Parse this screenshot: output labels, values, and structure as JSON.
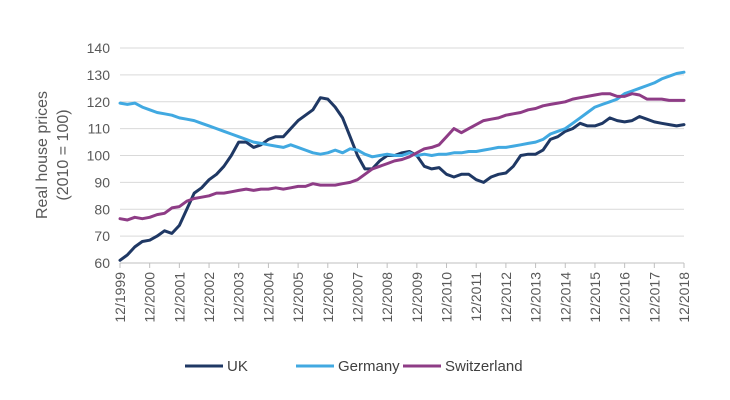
{
  "chart_data": {
    "type": "line",
    "title": "",
    "xlabel": "",
    "ylabel_lines": [
      "Real house prices",
      "(2010 = 100)"
    ],
    "ylim": [
      60,
      140
    ],
    "yticks": [
      60,
      70,
      80,
      90,
      100,
      110,
      120,
      130,
      140
    ],
    "x_start": 1999.92,
    "x_end": 2018.92,
    "x_tick_labels": [
      "12/1999",
      "12/2000",
      "12/2001",
      "12/2002",
      "12/2003",
      "12/2004",
      "12/2005",
      "12/2006",
      "12/2007",
      "12/2008",
      "12/2009",
      "12/2010",
      "12/2011",
      "12/2012",
      "12/2013",
      "12/2014",
      "12/2015",
      "12/2016",
      "12/2017",
      "12/2018"
    ],
    "grid": "horizontal",
    "legend_position": "bottom",
    "series": [
      {
        "name": "UK",
        "color": "#1f3864",
        "values": [
          [
            1999.92,
            61
          ],
          [
            2000.17,
            63
          ],
          [
            2000.42,
            66
          ],
          [
            2000.67,
            68
          ],
          [
            2000.92,
            68.5
          ],
          [
            2001.17,
            70
          ],
          [
            2001.42,
            72
          ],
          [
            2001.67,
            71
          ],
          [
            2001.92,
            74
          ],
          [
            2002.17,
            80
          ],
          [
            2002.42,
            86
          ],
          [
            2002.67,
            88
          ],
          [
            2002.92,
            91
          ],
          [
            2003.17,
            93
          ],
          [
            2003.42,
            96
          ],
          [
            2003.67,
            100
          ],
          [
            2003.92,
            105
          ],
          [
            2004.17,
            105
          ],
          [
            2004.42,
            103
          ],
          [
            2004.67,
            104
          ],
          [
            2004.92,
            106
          ],
          [
            2005.17,
            107
          ],
          [
            2005.42,
            107
          ],
          [
            2005.67,
            110
          ],
          [
            2005.92,
            113
          ],
          [
            2006.17,
            115
          ],
          [
            2006.42,
            117
          ],
          [
            2006.67,
            121.5
          ],
          [
            2006.92,
            121
          ],
          [
            2007.17,
            118
          ],
          [
            2007.42,
            114
          ],
          [
            2007.67,
            107
          ],
          [
            2007.92,
            100
          ],
          [
            2008.17,
            95
          ],
          [
            2008.42,
            95
          ],
          [
            2008.67,
            98
          ],
          [
            2008.92,
            100
          ],
          [
            2009.17,
            100
          ],
          [
            2009.42,
            101
          ],
          [
            2009.67,
            101.5
          ],
          [
            2009.92,
            100
          ],
          [
            2010.17,
            96
          ],
          [
            2010.42,
            95
          ],
          [
            2010.67,
            95.5
          ],
          [
            2010.92,
            93
          ],
          [
            2011.17,
            92
          ],
          [
            2011.42,
            93
          ],
          [
            2011.67,
            93
          ],
          [
            2011.92,
            91
          ],
          [
            2012.17,
            90
          ],
          [
            2012.42,
            92
          ],
          [
            2012.67,
            93
          ],
          [
            2012.92,
            93.5
          ],
          [
            2013.17,
            96
          ],
          [
            2013.42,
            100
          ],
          [
            2013.67,
            100.5
          ],
          [
            2013.92,
            100.5
          ],
          [
            2014.17,
            102
          ],
          [
            2014.42,
            106
          ],
          [
            2014.67,
            107
          ],
          [
            2014.92,
            109
          ],
          [
            2015.17,
            110
          ],
          [
            2015.42,
            112
          ],
          [
            2015.67,
            111
          ],
          [
            2015.92,
            111
          ],
          [
            2016.17,
            112
          ],
          [
            2016.42,
            114
          ],
          [
            2016.67,
            113
          ],
          [
            2016.92,
            112.5
          ],
          [
            2017.17,
            113
          ],
          [
            2017.42,
            114.5
          ],
          [
            2017.67,
            113.5
          ],
          [
            2017.92,
            112.5
          ],
          [
            2018.17,
            112
          ],
          [
            2018.42,
            111.5
          ],
          [
            2018.67,
            111
          ],
          [
            2018.92,
            111.5
          ]
        ]
      },
      {
        "name": "Germany",
        "color": "#41a9e1",
        "values": [
          [
            1999.92,
            119.5
          ],
          [
            2000.17,
            119
          ],
          [
            2000.42,
            119.5
          ],
          [
            2000.67,
            118
          ],
          [
            2000.92,
            117
          ],
          [
            2001.17,
            116
          ],
          [
            2001.42,
            115.5
          ],
          [
            2001.67,
            115
          ],
          [
            2001.92,
            114
          ],
          [
            2002.17,
            113.5
          ],
          [
            2002.42,
            113
          ],
          [
            2002.67,
            112
          ],
          [
            2002.92,
            111
          ],
          [
            2003.17,
            110
          ],
          [
            2003.42,
            109
          ],
          [
            2003.67,
            108
          ],
          [
            2003.92,
            107
          ],
          [
            2004.17,
            106
          ],
          [
            2004.42,
            105
          ],
          [
            2004.67,
            104.5
          ],
          [
            2004.92,
            104
          ],
          [
            2005.17,
            103.5
          ],
          [
            2005.42,
            103
          ],
          [
            2005.67,
            104
          ],
          [
            2005.92,
            103
          ],
          [
            2006.17,
            102
          ],
          [
            2006.42,
            101
          ],
          [
            2006.67,
            100.5
          ],
          [
            2006.92,
            101
          ],
          [
            2007.17,
            102
          ],
          [
            2007.42,
            101
          ],
          [
            2007.67,
            102.5
          ],
          [
            2007.92,
            102
          ],
          [
            2008.17,
            100.5
          ],
          [
            2008.42,
            99.5
          ],
          [
            2008.67,
            100
          ],
          [
            2008.92,
            100.5
          ],
          [
            2009.17,
            100
          ],
          [
            2009.42,
            100
          ],
          [
            2009.67,
            101
          ],
          [
            2009.92,
            100
          ],
          [
            2010.17,
            100.5
          ],
          [
            2010.42,
            100
          ],
          [
            2010.67,
            100.5
          ],
          [
            2010.92,
            100.5
          ],
          [
            2011.17,
            101
          ],
          [
            2011.42,
            101
          ],
          [
            2011.67,
            101.5
          ],
          [
            2011.92,
            101.5
          ],
          [
            2012.17,
            102
          ],
          [
            2012.42,
            102.5
          ],
          [
            2012.67,
            103
          ],
          [
            2012.92,
            103
          ],
          [
            2013.17,
            103.5
          ],
          [
            2013.42,
            104
          ],
          [
            2013.67,
            104.5
          ],
          [
            2013.92,
            105
          ],
          [
            2014.17,
            106
          ],
          [
            2014.42,
            108
          ],
          [
            2014.67,
            109
          ],
          [
            2014.92,
            110
          ],
          [
            2015.17,
            112
          ],
          [
            2015.42,
            114
          ],
          [
            2015.67,
            116
          ],
          [
            2015.92,
            118
          ],
          [
            2016.17,
            119
          ],
          [
            2016.42,
            120
          ],
          [
            2016.67,
            121
          ],
          [
            2016.92,
            123
          ],
          [
            2017.17,
            124
          ],
          [
            2017.42,
            125
          ],
          [
            2017.67,
            126
          ],
          [
            2017.92,
            127
          ],
          [
            2018.17,
            128.5
          ],
          [
            2018.42,
            129.5
          ],
          [
            2018.67,
            130.5
          ],
          [
            2018.92,
            131
          ]
        ]
      },
      {
        "name": "Switzerland",
        "color": "#8e3c86",
        "values": [
          [
            1999.92,
            76.5
          ],
          [
            2000.17,
            76
          ],
          [
            2000.42,
            77
          ],
          [
            2000.67,
            76.5
          ],
          [
            2000.92,
            77
          ],
          [
            2001.17,
            78
          ],
          [
            2001.42,
            78.5
          ],
          [
            2001.67,
            80.5
          ],
          [
            2001.92,
            81
          ],
          [
            2002.17,
            83
          ],
          [
            2002.42,
            84
          ],
          [
            2002.67,
            84.5
          ],
          [
            2002.92,
            85
          ],
          [
            2003.17,
            86
          ],
          [
            2003.42,
            86
          ],
          [
            2003.67,
            86.5
          ],
          [
            2003.92,
            87
          ],
          [
            2004.17,
            87.5
          ],
          [
            2004.42,
            87
          ],
          [
            2004.67,
            87.5
          ],
          [
            2004.92,
            87.5
          ],
          [
            2005.17,
            88
          ],
          [
            2005.42,
            87.5
          ],
          [
            2005.67,
            88
          ],
          [
            2005.92,
            88.5
          ],
          [
            2006.17,
            88.5
          ],
          [
            2006.42,
            89.5
          ],
          [
            2006.67,
            89
          ],
          [
            2006.92,
            89
          ],
          [
            2007.17,
            89
          ],
          [
            2007.42,
            89.5
          ],
          [
            2007.67,
            90
          ],
          [
            2007.92,
            91
          ],
          [
            2008.17,
            93
          ],
          [
            2008.42,
            95
          ],
          [
            2008.67,
            96
          ],
          [
            2008.92,
            97
          ],
          [
            2009.17,
            98
          ],
          [
            2009.42,
            98.5
          ],
          [
            2009.67,
            99.5
          ],
          [
            2009.92,
            101
          ],
          [
            2010.17,
            102.5
          ],
          [
            2010.42,
            103
          ],
          [
            2010.67,
            104
          ],
          [
            2010.92,
            107
          ],
          [
            2011.17,
            110
          ],
          [
            2011.42,
            108.5
          ],
          [
            2011.67,
            110
          ],
          [
            2011.92,
            111.5
          ],
          [
            2012.17,
            113
          ],
          [
            2012.42,
            113.5
          ],
          [
            2012.67,
            114
          ],
          [
            2012.92,
            115
          ],
          [
            2013.17,
            115.5
          ],
          [
            2013.42,
            116
          ],
          [
            2013.67,
            117
          ],
          [
            2013.92,
            117.5
          ],
          [
            2014.17,
            118.5
          ],
          [
            2014.42,
            119
          ],
          [
            2014.67,
            119.5
          ],
          [
            2014.92,
            120
          ],
          [
            2015.17,
            121
          ],
          [
            2015.42,
            121.5
          ],
          [
            2015.67,
            122
          ],
          [
            2015.92,
            122.5
          ],
          [
            2016.17,
            123
          ],
          [
            2016.42,
            123
          ],
          [
            2016.67,
            122
          ],
          [
            2016.92,
            122
          ],
          [
            2017.17,
            123
          ],
          [
            2017.42,
            122.5
          ],
          [
            2017.67,
            121
          ],
          [
            2017.92,
            121
          ],
          [
            2018.17,
            121
          ],
          [
            2018.42,
            120.5
          ],
          [
            2018.67,
            120.5
          ],
          [
            2018.92,
            120.5
          ]
        ]
      }
    ]
  }
}
